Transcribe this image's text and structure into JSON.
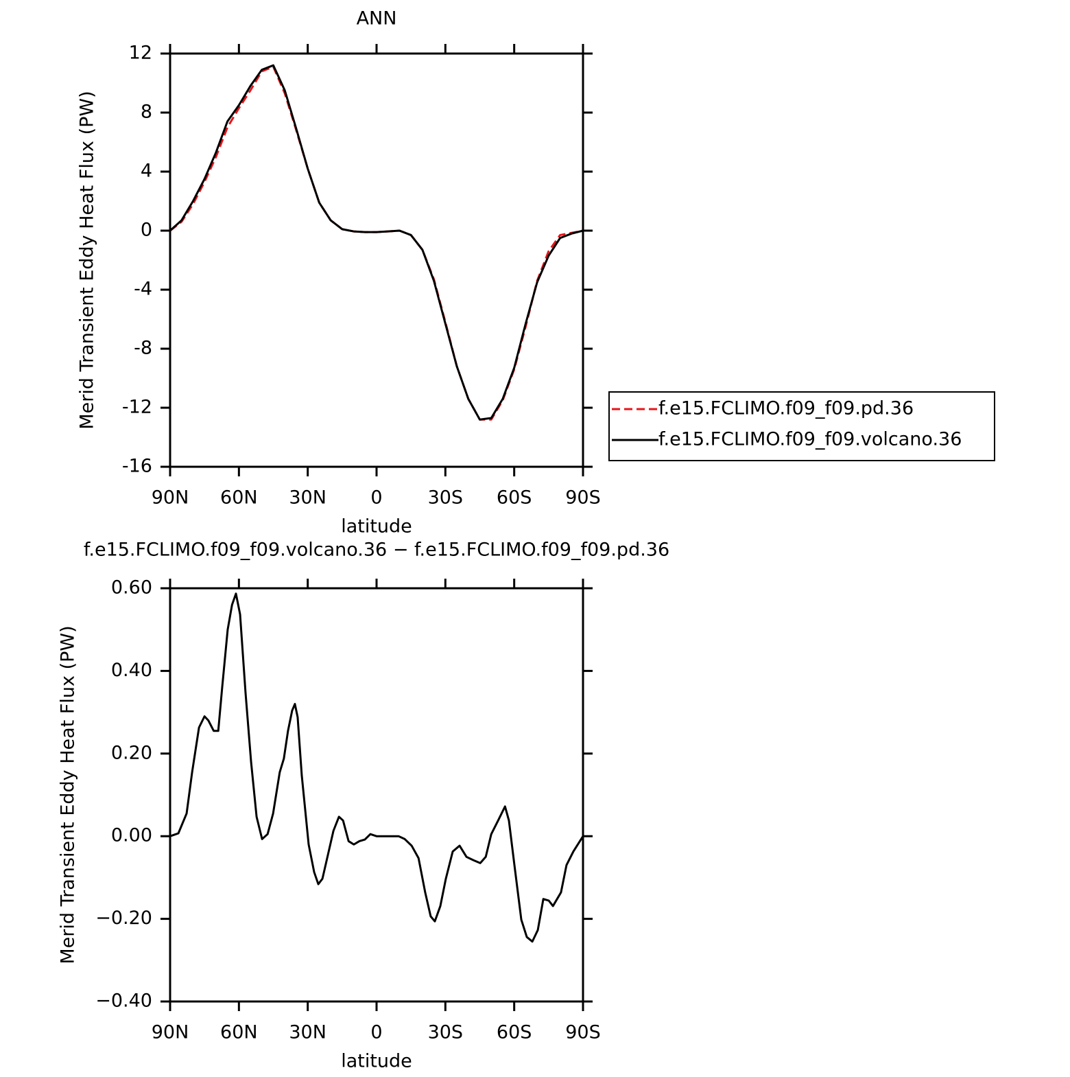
{
  "chart_data": [
    {
      "type": "line",
      "title": "ANN",
      "xlabel": "latitude",
      "ylabel": "Merid Transient Eddy Heat Flux (PW)",
      "x": [
        90,
        85,
        80,
        75,
        70,
        65,
        60,
        55,
        50,
        45,
        40,
        35,
        30,
        25,
        20,
        15,
        10,
        5,
        0,
        -5,
        -10,
        -15,
        -20,
        -25,
        -30,
        -35,
        -40,
        -45,
        -50,
        -55,
        -60,
        -65,
        -70,
        -75,
        -80,
        -85,
        -90
      ],
      "xlim": [
        90,
        -90
      ],
      "xticks": [
        {
          "value": 90,
          "label": "90N"
        },
        {
          "value": 60,
          "label": "60N"
        },
        {
          "value": 30,
          "label": "30N"
        },
        0,
        {
          "value": -30,
          "label": "30S"
        },
        {
          "value": -60,
          "label": "60S"
        },
        {
          "value": -90,
          "label": "90S"
        }
      ],
      "ylim": [
        -16,
        12
      ],
      "yticks": [
        12,
        8,
        4,
        0,
        -4,
        -8,
        -12,
        -16
      ],
      "legend": "right",
      "series": [
        {
          "name": "f.e15.FCLIMO.f09_f09.pd.36",
          "color": "#e8141a",
          "linestyle": "dashed",
          "values": [
            0,
            0.6,
            1.8,
            3.3,
            5.0,
            7.0,
            8.3,
            9.5,
            10.8,
            11.1,
            9.3,
            6.8,
            4.2,
            1.9,
            0.7,
            0.1,
            -0.05,
            -0.1,
            -0.1,
            -0.05,
            0,
            -0.3,
            -1.3,
            -3.3,
            -6.2,
            -9.2,
            -11.4,
            -12.8,
            -12.8,
            -11.5,
            -9.4,
            -6.5,
            -3.4,
            -1.4,
            -0.3,
            -0.15,
            0
          ]
        },
        {
          "name": "f.e15.FCLIMO.f09_f09.volcano.36",
          "color": "#000000",
          "linestyle": "solid",
          "values": [
            0,
            0.7,
            2.0,
            3.5,
            5.3,
            7.4,
            8.5,
            9.8,
            10.9,
            11.2,
            9.5,
            6.9,
            4.2,
            1.9,
            0.7,
            0.1,
            -0.05,
            -0.1,
            -0.1,
            -0.05,
            0,
            -0.3,
            -1.3,
            -3.4,
            -6.3,
            -9.2,
            -11.4,
            -12.8,
            -12.7,
            -11.4,
            -9.3,
            -6.3,
            -3.5,
            -1.7,
            -0.5,
            -0.2,
            0
          ]
        }
      ]
    },
    {
      "type": "line",
      "title": "f.e15.FCLIMO.f09_f09.volcano.36 − f.e15.FCLIMO.f09_f09.pd.36",
      "xlabel": "latitude",
      "ylabel": "Merid Transient Eddy Heat Flux (PW)",
      "x": [
        90,
        86.4,
        82.8,
        80.4,
        77.4,
        75,
        73.3,
        71,
        69,
        67.3,
        64.9,
        63,
        61.3,
        59.5,
        57.1,
        54.7,
        52.3,
        49.9,
        47.5,
        45.1,
        42.2,
        40.4,
        38.6,
        36.8,
        35.6,
        34.4,
        32.6,
        29.6,
        27.2,
        25.4,
        23.6,
        21.2,
        18.8,
        16.4,
        14.6,
        12.2,
        9.9,
        7.5,
        5.1,
        2.7,
        0,
        -3.6,
        -9.6,
        -12.3,
        -15.3,
        -18.3,
        -21.2,
        -23.6,
        -25.4,
        -27.8,
        -30.2,
        -33.2,
        -36.2,
        -39.2,
        -42.2,
        -45.2,
        -47.6,
        -50,
        -53,
        -56,
        -57.7,
        -60.1,
        -63.1,
        -65.5,
        -67.9,
        -70.3,
        -72.7,
        -75.1,
        -76.9,
        -80.4,
        -82.8,
        -85.8,
        -90
      ],
      "xlim": [
        90,
        -90
      ],
      "xticks": [
        {
          "value": 90,
          "label": "90N"
        },
        {
          "value": 60,
          "label": "60N"
        },
        {
          "value": 30,
          "label": "30N"
        },
        0,
        {
          "value": -30,
          "label": "30S"
        },
        {
          "value": -60,
          "label": "60S"
        },
        {
          "value": -90,
          "label": "90S"
        }
      ],
      "ylim": [
        -0.4,
        0.6
      ],
      "yticks": [
        {
          "value": 0.6,
          "label": "0.60"
        },
        {
          "value": 0.4,
          "label": "0.40"
        },
        {
          "value": 0.2,
          "label": "0.20"
        },
        {
          "value": 0,
          "label": "0.00"
        },
        {
          "value": -0.2,
          "label": "−0.20"
        },
        {
          "value": -0.4,
          "label": "−0.40"
        }
      ],
      "series": [
        {
          "color": "#000000",
          "linestyle": "solid",
          "values": [
            0,
            0.007,
            0.055,
            0.155,
            0.263,
            0.29,
            0.28,
            0.255,
            0.255,
            0.36,
            0.5,
            0.56,
            0.587,
            0.537,
            0.346,
            0.18,
            0.047,
            -0.007,
            0.005,
            0.055,
            0.155,
            0.188,
            0.255,
            0.304,
            0.32,
            0.288,
            0.147,
            -0.02,
            -0.087,
            -0.116,
            -0.103,
            -0.045,
            0.013,
            0.047,
            0.038,
            -0.012,
            -0.02,
            -0.012,
            -0.008,
            0.005,
            0,
            0,
            0,
            -0.007,
            -0.023,
            -0.053,
            -0.136,
            -0.194,
            -0.206,
            -0.169,
            -0.103,
            -0.037,
            -0.023,
            -0.05,
            -0.058,
            -0.065,
            -0.05,
            0.005,
            0.038,
            0.072,
            0.038,
            -0.07,
            -0.202,
            -0.244,
            -0.255,
            -0.227,
            -0.152,
            -0.156,
            -0.169,
            -0.136,
            -0.07,
            -0.037,
            0
          ]
        }
      ]
    }
  ]
}
